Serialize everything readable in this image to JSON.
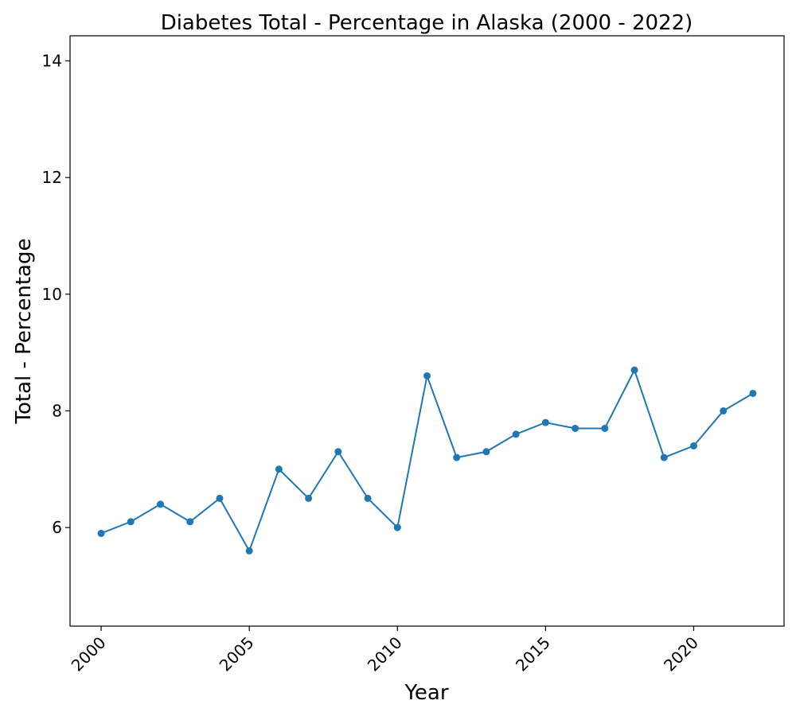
{
  "chart_data": {
    "type": "line",
    "title": "Diabetes Total - Percentage in Alaska (2000 - 2022)",
    "xlabel": "Year",
    "ylabel": "Total - Percentage",
    "xlim": [
      1998.95,
      2023.05
    ],
    "ylim": [
      4.31,
      14.43
    ],
    "xticks": [
      2000,
      2005,
      2010,
      2015,
      2020
    ],
    "yticks": [
      6,
      8,
      10,
      12,
      14
    ],
    "grid": false,
    "legend": "none",
    "series_color": "#1f77b4",
    "x": [
      2000,
      2001,
      2002,
      2003,
      2004,
      2005,
      2006,
      2007,
      2008,
      2009,
      2010,
      2011,
      2012,
      2013,
      2014,
      2015,
      2016,
      2017,
      2018,
      2019,
      2020,
      2021,
      2022
    ],
    "y": [
      5.9,
      6.1,
      6.4,
      6.1,
      6.5,
      5.6,
      7.0,
      6.5,
      7.3,
      6.5,
      6.0,
      8.6,
      7.2,
      7.3,
      7.6,
      7.8,
      7.7,
      7.7,
      8.7,
      7.2,
      7.4,
      8.0,
      8.3
    ]
  }
}
